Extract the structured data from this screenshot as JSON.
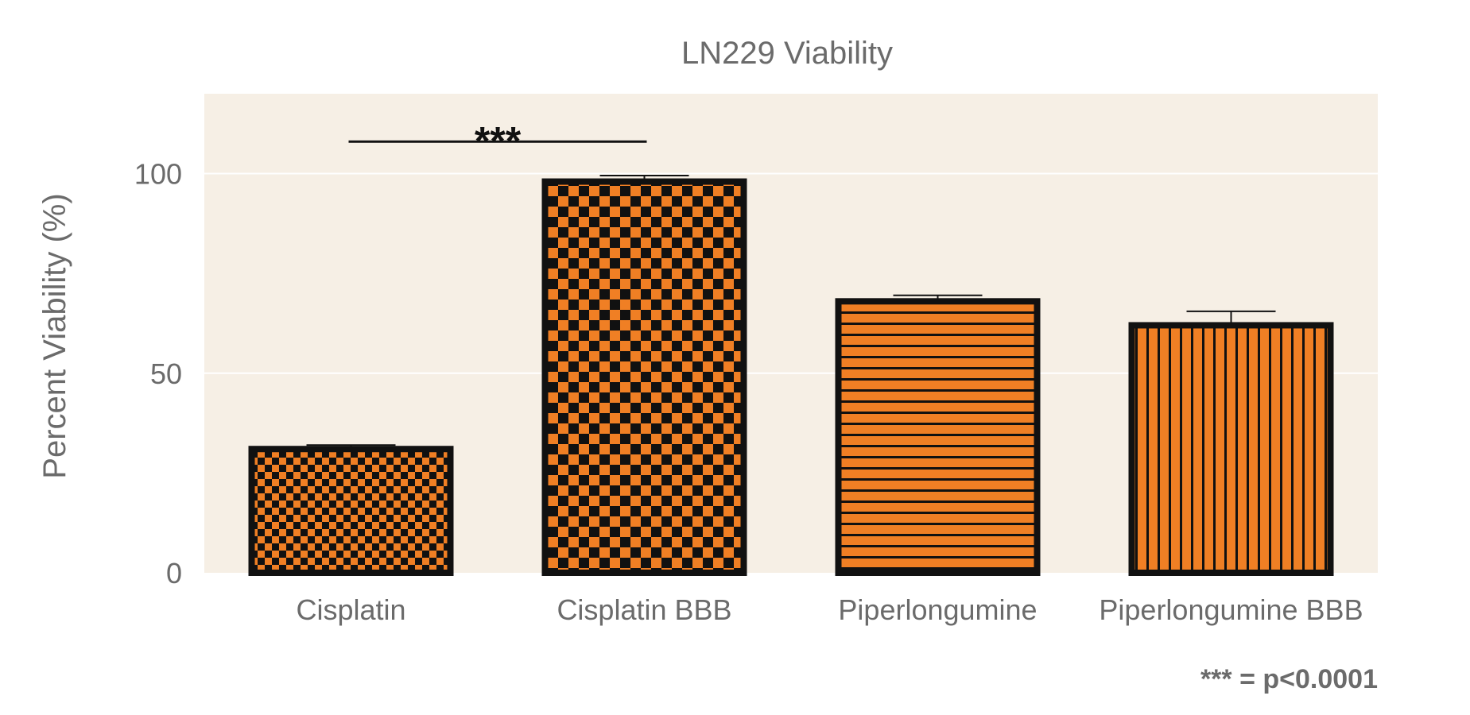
{
  "chart_data": {
    "type": "bar",
    "title": "LN229 Viability",
    "ylabel": "Percent Viability (%)",
    "xlabel": "",
    "categories": [
      "Cisplatin",
      "Cisplatin BBB",
      "Piperlongumine",
      "Piperlongumine BBB"
    ],
    "values": [
      31,
      98,
      68,
      62
    ],
    "errors": [
      1.0,
      1.5,
      1.5,
      3.5
    ],
    "patterns": [
      "checker-small",
      "checker-large",
      "horizontal-stripes",
      "vertical-stripes"
    ],
    "ylim": [
      0,
      120
    ],
    "yticks": [
      0,
      50,
      100
    ],
    "grid": true,
    "legend": "none",
    "significance": {
      "from": 0,
      "to": 1,
      "label": "***"
    },
    "footnote": "*** = p<0.0001",
    "colors": {
      "bar_fill": "#f07f24",
      "bar_pattern": "#111111",
      "panel_background": "#f6efe5",
      "gridline": "#ffffff",
      "text": "#6b6b6b"
    }
  }
}
